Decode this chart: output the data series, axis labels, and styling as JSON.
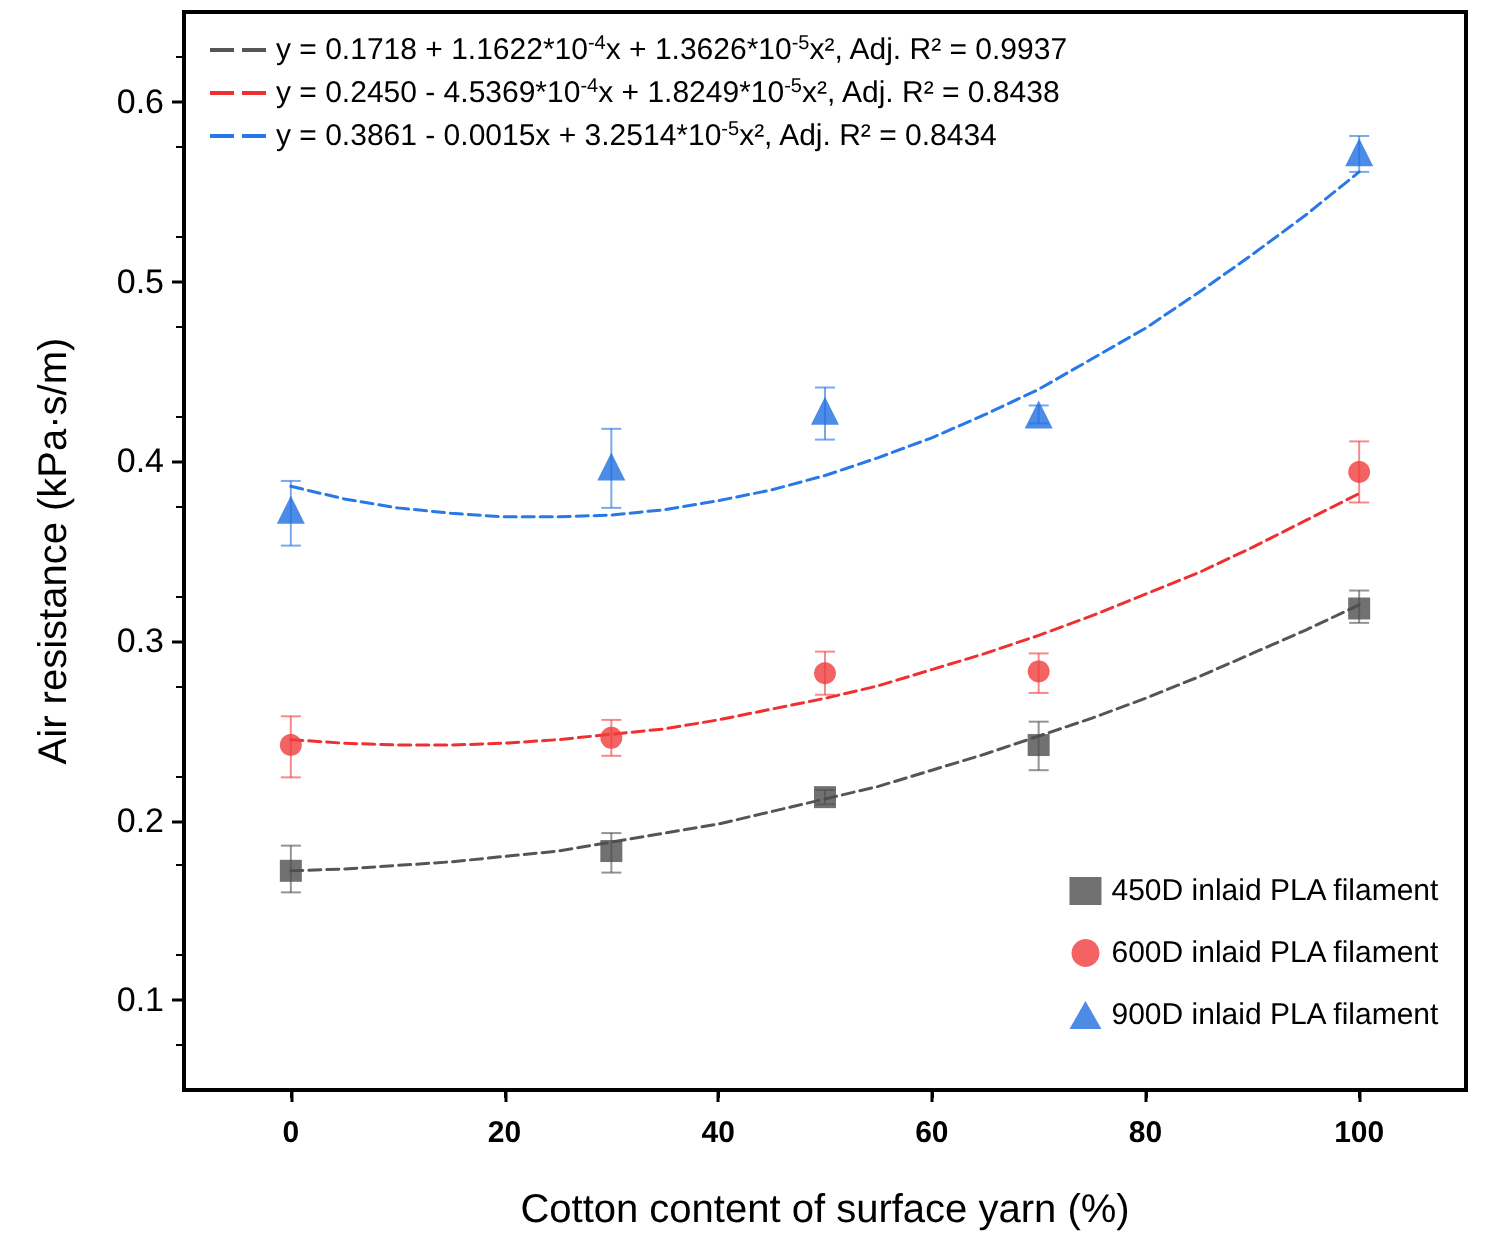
{
  "chart_data": {
    "type": "scatter",
    "xlabel": "Cotton content of surface yarn (%)",
    "ylabel": "Air resistance (kPa·s/m)",
    "xlim": [
      -10,
      110
    ],
    "xticks": [
      0,
      20,
      40,
      60,
      80,
      100
    ],
    "ylim": [
      0.05,
      0.65
    ],
    "yticks": [
      0.1,
      0.2,
      0.3,
      0.4,
      0.5,
      0.6
    ],
    "grid": false,
    "legend": "top left",
    "x": [
      0,
      30,
      50,
      70,
      100
    ],
    "series": [
      {
        "name": "450D inlaid PLA filament",
        "marker": "square",
        "color": "#4d4d4d",
        "values": [
          0.172,
          0.183,
          0.213,
          0.242,
          0.318
        ],
        "errors": [
          [
            0.16,
            0.186
          ],
          [
            0.171,
            0.193
          ],
          [
            0.209,
            0.217
          ],
          [
            0.228,
            0.255
          ],
          [
            0.31,
            0.328
          ]
        ]
      },
      {
        "name": "600D inlaid PLA filament",
        "marker": "circle",
        "color": "#f03c3c",
        "values": [
          0.242,
          0.246,
          0.282,
          0.283,
          0.394
        ],
        "errors": [
          [
            0.224,
            0.258
          ],
          [
            0.236,
            0.256
          ],
          [
            0.27,
            0.294
          ],
          [
            0.271,
            0.293
          ],
          [
            0.377,
            0.411
          ]
        ]
      },
      {
        "name": "900D inlaid PLA filament",
        "marker": "triangle",
        "color": "#1f6fe0",
        "values": [
          0.373,
          0.397,
          0.428,
          0.426,
          0.572
        ],
        "errors": [
          [
            0.353,
            0.389
          ],
          [
            0.374,
            0.418
          ],
          [
            0.412,
            0.441
          ],
          [
            0.421,
            0.431
          ],
          [
            0.561,
            0.581
          ]
        ]
      },
      {
        "name": "y = 0.1718 + 1.1622*10$^{-4}$x + 1.3626*10$^{-5}$x², Adj. R² = 0.9937",
        "type": "line",
        "marker": "none",
        "line_style": "dashed",
        "color": "#555555",
        "x": [
          0,
          5,
          10,
          15,
          20,
          25,
          30,
          35,
          40,
          45,
          50,
          55,
          60,
          65,
          70,
          75,
          80,
          85,
          90,
          95,
          100
        ],
        "values": [
          0.172,
          0.173,
          0.175,
          0.177,
          0.18,
          0.183,
          0.188,
          0.193,
          0.198,
          0.205,
          0.212,
          0.219,
          0.228,
          0.237,
          0.247,
          0.257,
          0.268,
          0.28,
          0.293,
          0.306,
          0.32
        ]
      },
      {
        "name": "y = 0.2450 - 4.5369*10$^{-4}$x + 1.8249*10$^{-5}$x², Adj. R² = 0.8438",
        "type": "line",
        "marker": "none",
        "line_style": "dashed",
        "color": "#f03030",
        "x": [
          0,
          5,
          10,
          15,
          20,
          25,
          30,
          35,
          40,
          45,
          50,
          55,
          60,
          65,
          70,
          75,
          80,
          85,
          90,
          95,
          100
        ],
        "values": [
          0.245,
          0.243,
          0.242,
          0.242,
          0.243,
          0.245,
          0.248,
          0.251,
          0.256,
          0.262,
          0.268,
          0.275,
          0.284,
          0.293,
          0.303,
          0.314,
          0.326,
          0.338,
          0.352,
          0.367,
          0.382
        ]
      },
      {
        "name": "y = 0.3861 - 0.0015x + 3.2514*10$^{-5}$x², Adj. R² = 0.8434",
        "type": "line",
        "marker": "none",
        "line_style": "dashed",
        "color": "#2878e8",
        "x": [
          0,
          5,
          10,
          15,
          20,
          25,
          30,
          35,
          40,
          45,
          50,
          55,
          60,
          65,
          70,
          75,
          80,
          85,
          90,
          95,
          100
        ],
        "values": [
          0.386,
          0.379,
          0.374,
          0.371,
          0.369,
          0.369,
          0.37,
          0.373,
          0.378,
          0.384,
          0.392,
          0.402,
          0.413,
          0.426,
          0.44,
          0.457,
          0.474,
          0.494,
          0.515,
          0.537,
          0.561
        ]
      }
    ]
  }
}
